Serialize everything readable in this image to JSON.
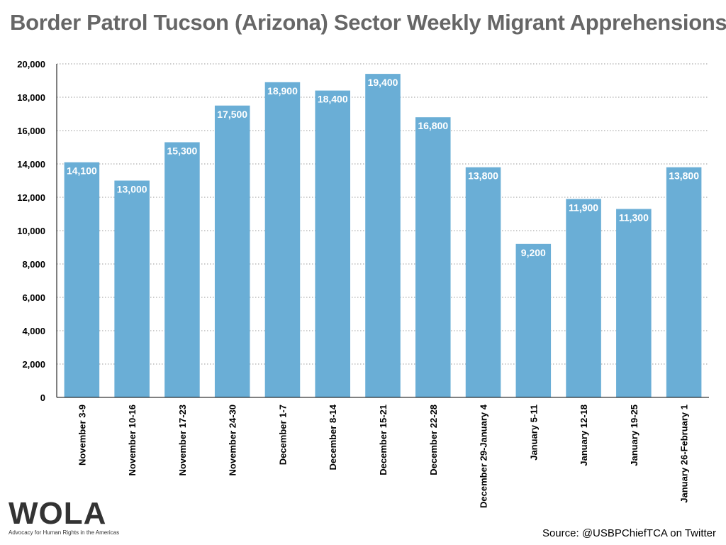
{
  "chart_data": {
    "type": "bar",
    "title": "Border Patrol Tucson (Arizona) Sector Weekly Migrant Apprehensions",
    "categories": [
      "November 3-9",
      "November 10-16",
      "November 17-23",
      "November 24-30",
      "December 1-7",
      "December 8-14",
      "December 15-21",
      "December 22-28",
      "December 29-January 4",
      "January 5-11",
      "January 12-18",
      "January 19-25",
      "January 26-February 1"
    ],
    "values": [
      14100,
      13000,
      15300,
      17500,
      18900,
      18400,
      19400,
      16800,
      13800,
      9200,
      11900,
      11300,
      13800
    ],
    "data_labels": [
      "14,100",
      "13,000",
      "15,300",
      "17,500",
      "18,900",
      "18,400",
      "19,400",
      "16,800",
      "13,800",
      "9,200",
      "11,900",
      "11,300",
      "13,800"
    ],
    "y_ticks": [
      "0",
      "2,000",
      "4,000",
      "6,000",
      "8,000",
      "10,000",
      "12,000",
      "14,000",
      "16,000",
      "18,000",
      "20,000"
    ],
    "ylim": [
      0,
      20000
    ],
    "grid": true,
    "bar_color": "#6aaed6",
    "xlabel": "",
    "ylabel": ""
  },
  "footer": {
    "logo_text": "WOLA",
    "logo_tagline": "Advocacy for Human Rights in the Americas",
    "source": "Source: @USBPChiefTCA on Twitter"
  }
}
